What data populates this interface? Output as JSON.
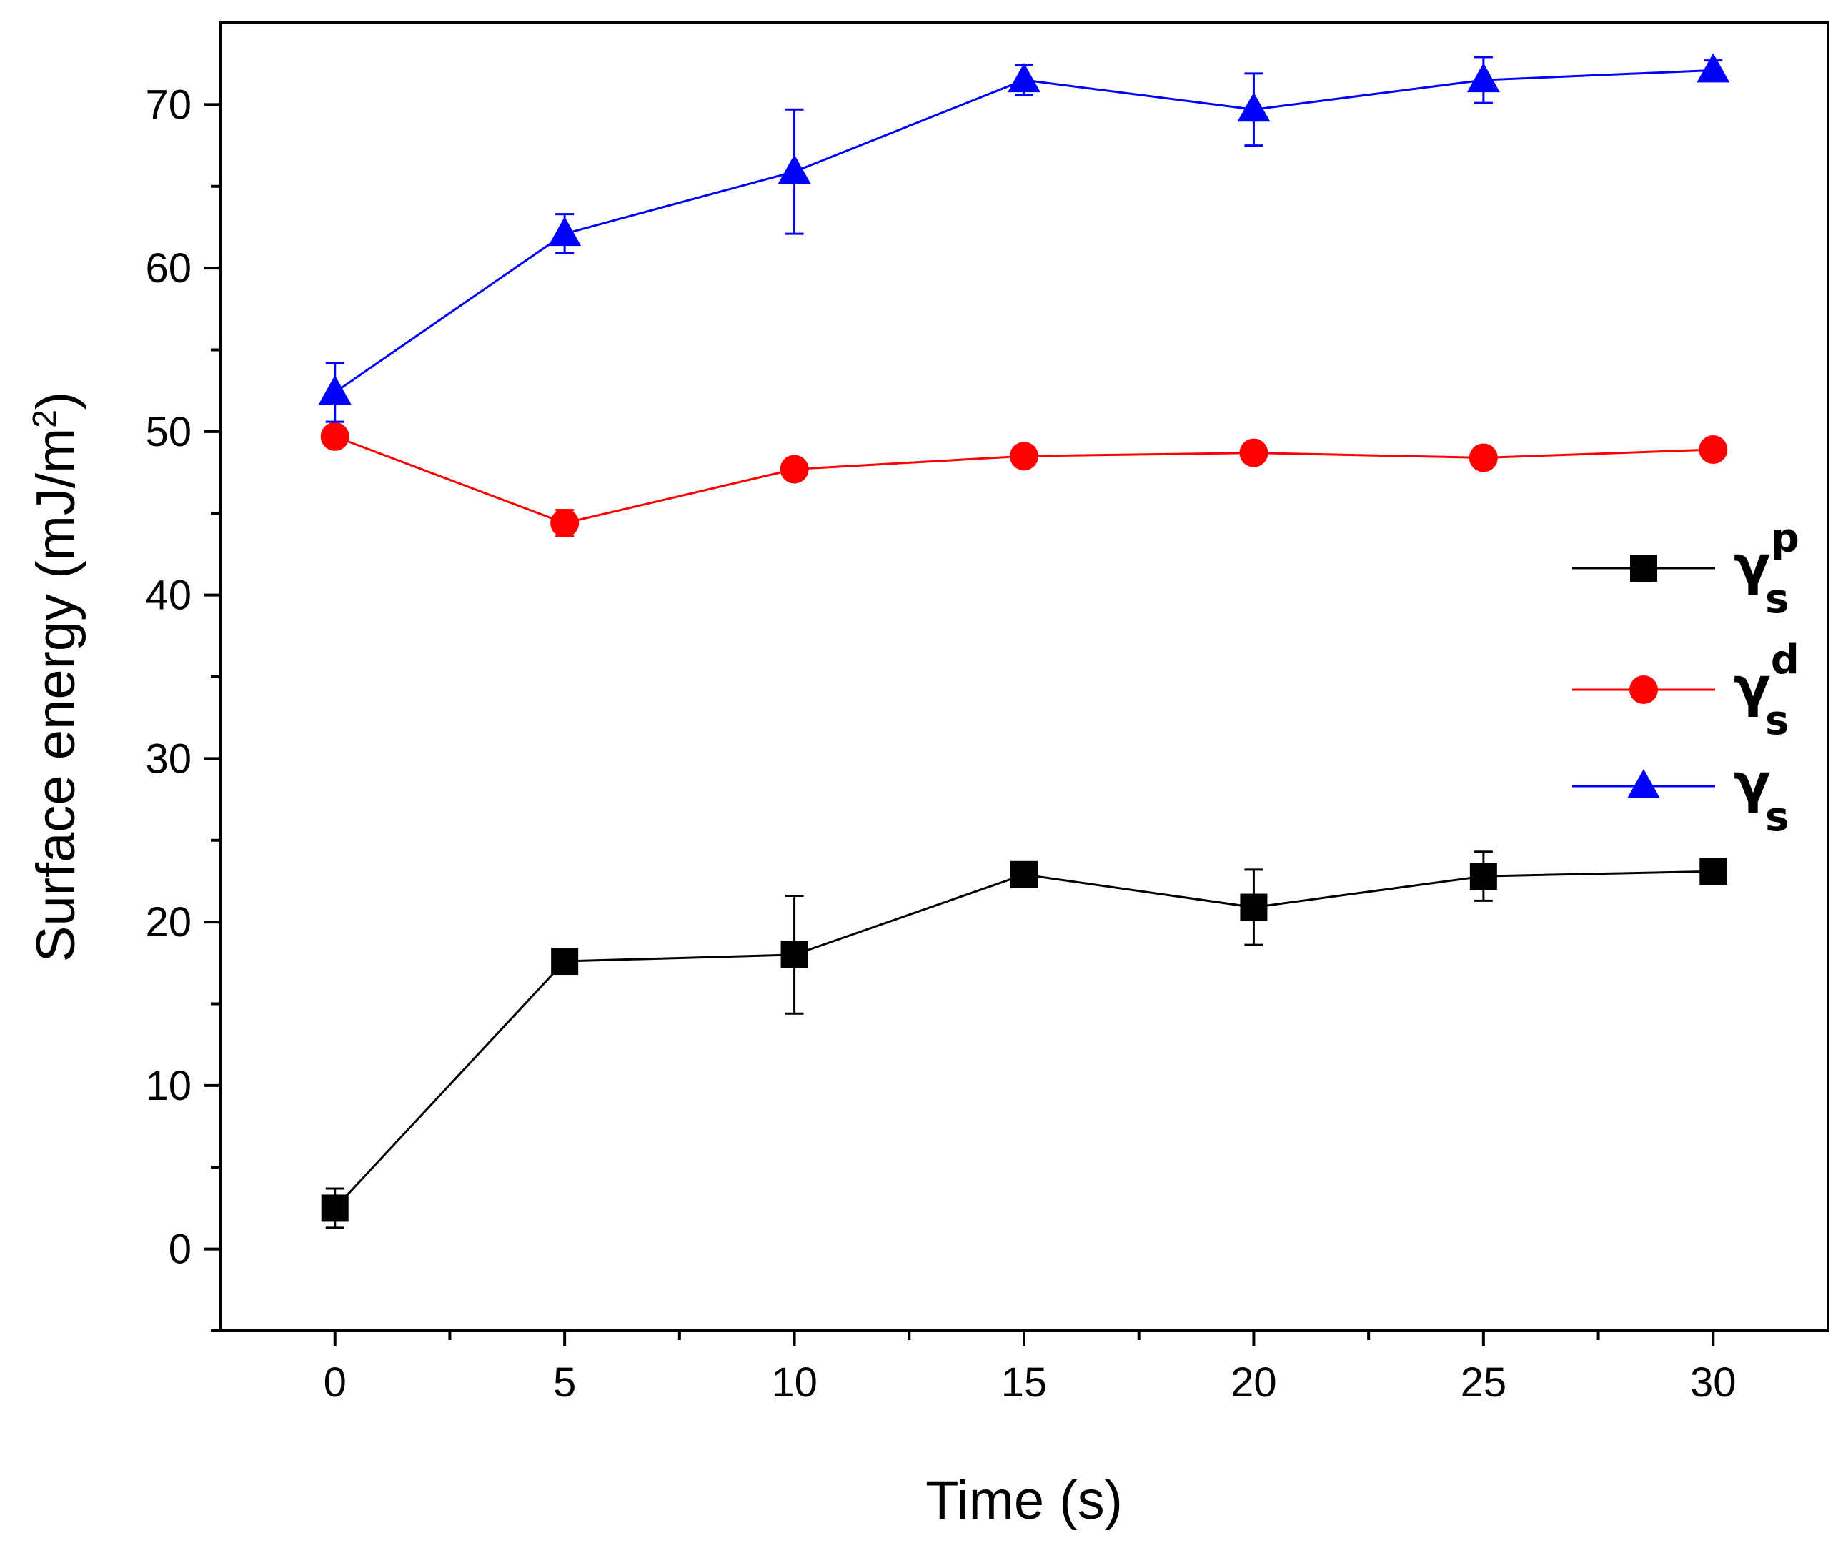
{
  "chart_data": {
    "type": "line",
    "xlabel": "Time (s)",
    "ylabel": "Surface energy (mJ/m",
    "ylabel_sup": "2",
    "ylabel_close": ")",
    "xlim": [
      -2.5,
      32.5
    ],
    "ylim": [
      -5,
      75
    ],
    "x_ticks": [
      0,
      5,
      10,
      15,
      20,
      25,
      30
    ],
    "x_tick_labels": [
      "0",
      "5",
      "10",
      "15",
      "20",
      "25",
      "30"
    ],
    "x_minor_ticks": [
      2.5,
      7.5,
      12.5,
      17.5,
      22.5,
      27.5
    ],
    "y_ticks": [
      0,
      10,
      20,
      30,
      40,
      50,
      60,
      70
    ],
    "y_tick_labels": [
      "0",
      "10",
      "20",
      "30",
      "40",
      "50",
      "60",
      "70"
    ],
    "y_minor_ticks": [
      -5,
      5,
      15,
      25,
      35,
      45,
      55,
      65
    ],
    "grid": false,
    "legend_position": "right",
    "x": [
      0,
      5,
      10,
      15,
      20,
      25,
      30
    ],
    "series": [
      {
        "symbol": "γ",
        "subscript": "s",
        "superscript": "p",
        "marker": "square",
        "color": "#000000",
        "values": [
          2.5,
          17.6,
          18.0,
          22.9,
          20.9,
          22.8,
          23.1
        ],
        "errors": [
          1.2,
          0.4,
          3.6,
          0.4,
          2.3,
          1.5,
          0.3
        ]
      },
      {
        "symbol": "γ",
        "subscript": "s",
        "superscript": "d",
        "marker": "circle",
        "color": "#ff0000",
        "values": [
          49.7,
          44.4,
          47.7,
          48.5,
          48.7,
          48.4,
          48.9
        ],
        "errors": [
          0.4,
          0.8,
          0.3,
          0.5,
          0.3,
          0.3,
          0.3
        ]
      },
      {
        "symbol": "γ",
        "subscript": "s",
        "superscript": "",
        "marker": "triangle",
        "color": "#0000ff",
        "values": [
          52.4,
          62.1,
          65.9,
          71.5,
          69.7,
          71.5,
          72.1
        ],
        "errors": [
          1.8,
          1.2,
          3.8,
          0.9,
          2.2,
          1.4,
          0.6
        ]
      }
    ]
  }
}
